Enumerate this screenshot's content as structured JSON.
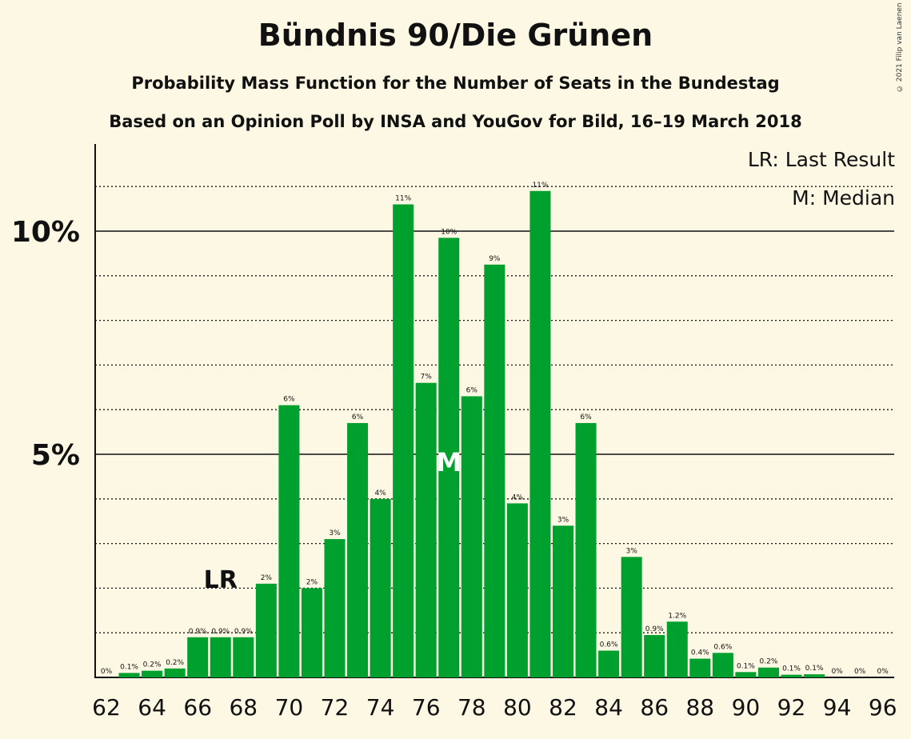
{
  "title": "Bündnis 90/Die Grünen",
  "subtitle": "Probability Mass Function for the Number of Seats in the Bundestag",
  "subtitle2": "Based on an Opinion Poll by INSA and YouGov for Bild, 16–19 March 2018",
  "copyright": "© 2021 Filip van Laenen",
  "legend": {
    "last_result": "LR: Last Result",
    "median": "M: Median"
  },
  "colors": {
    "bar": "#00a02e",
    "background": "#fdf8e3",
    "text": "#111111"
  },
  "chart_data": {
    "type": "bar",
    "title": "Bündnis 90/Die Grünen",
    "xlabel": "",
    "ylabel": "",
    "ylim": [
      0,
      12
    ],
    "yticks": [
      {
        "value": 5,
        "label": "5%"
      },
      {
        "value": 10,
        "label": "10%"
      }
    ],
    "grid": "dotted every 1%, solid at 5% and 10%",
    "categories": [
      62,
      63,
      64,
      65,
      66,
      67,
      68,
      69,
      70,
      71,
      72,
      73,
      74,
      75,
      76,
      77,
      78,
      79,
      80,
      81,
      82,
      83,
      84,
      85,
      86,
      87,
      88,
      89,
      90,
      91,
      92,
      93,
      94,
      95,
      96
    ],
    "xtick_labels": [
      "62",
      "64",
      "66",
      "68",
      "70",
      "72",
      "74",
      "76",
      "78",
      "80",
      "82",
      "84",
      "86",
      "88",
      "90",
      "92",
      "94",
      "96"
    ],
    "values": [
      0,
      0.1,
      0.15,
      0.2,
      0.9,
      0.9,
      0.9,
      2.1,
      6.1,
      2.0,
      3.1,
      5.7,
      4.0,
      10.6,
      6.6,
      9.85,
      6.3,
      9.25,
      3.9,
      10.9,
      3.4,
      5.7,
      0.6,
      2.7,
      0.95,
      1.25,
      0.42,
      0.55,
      0.12,
      0.22,
      0.06,
      0.07,
      0,
      0,
      0
    ],
    "data_labels": [
      "0%",
      "0.1%",
      "0.2%",
      "0.2%",
      "0.9%",
      "0.9%",
      "0.9%",
      "2%",
      "6%",
      "2%",
      "3%",
      "6%",
      "4%",
      "11%",
      "7%",
      "10%",
      "6%",
      "9%",
      "4%",
      "11%",
      "3%",
      "6%",
      "0.6%",
      "3%",
      "0.9%",
      "1.2%",
      "0.4%",
      "0.6%",
      "0.1%",
      "0.2%",
      "0.1%",
      "0.1%",
      "0%",
      "0%",
      "0%"
    ],
    "last_result": {
      "seat": 67,
      "label": "LR"
    },
    "median": {
      "seat": 77,
      "label": "M"
    }
  }
}
